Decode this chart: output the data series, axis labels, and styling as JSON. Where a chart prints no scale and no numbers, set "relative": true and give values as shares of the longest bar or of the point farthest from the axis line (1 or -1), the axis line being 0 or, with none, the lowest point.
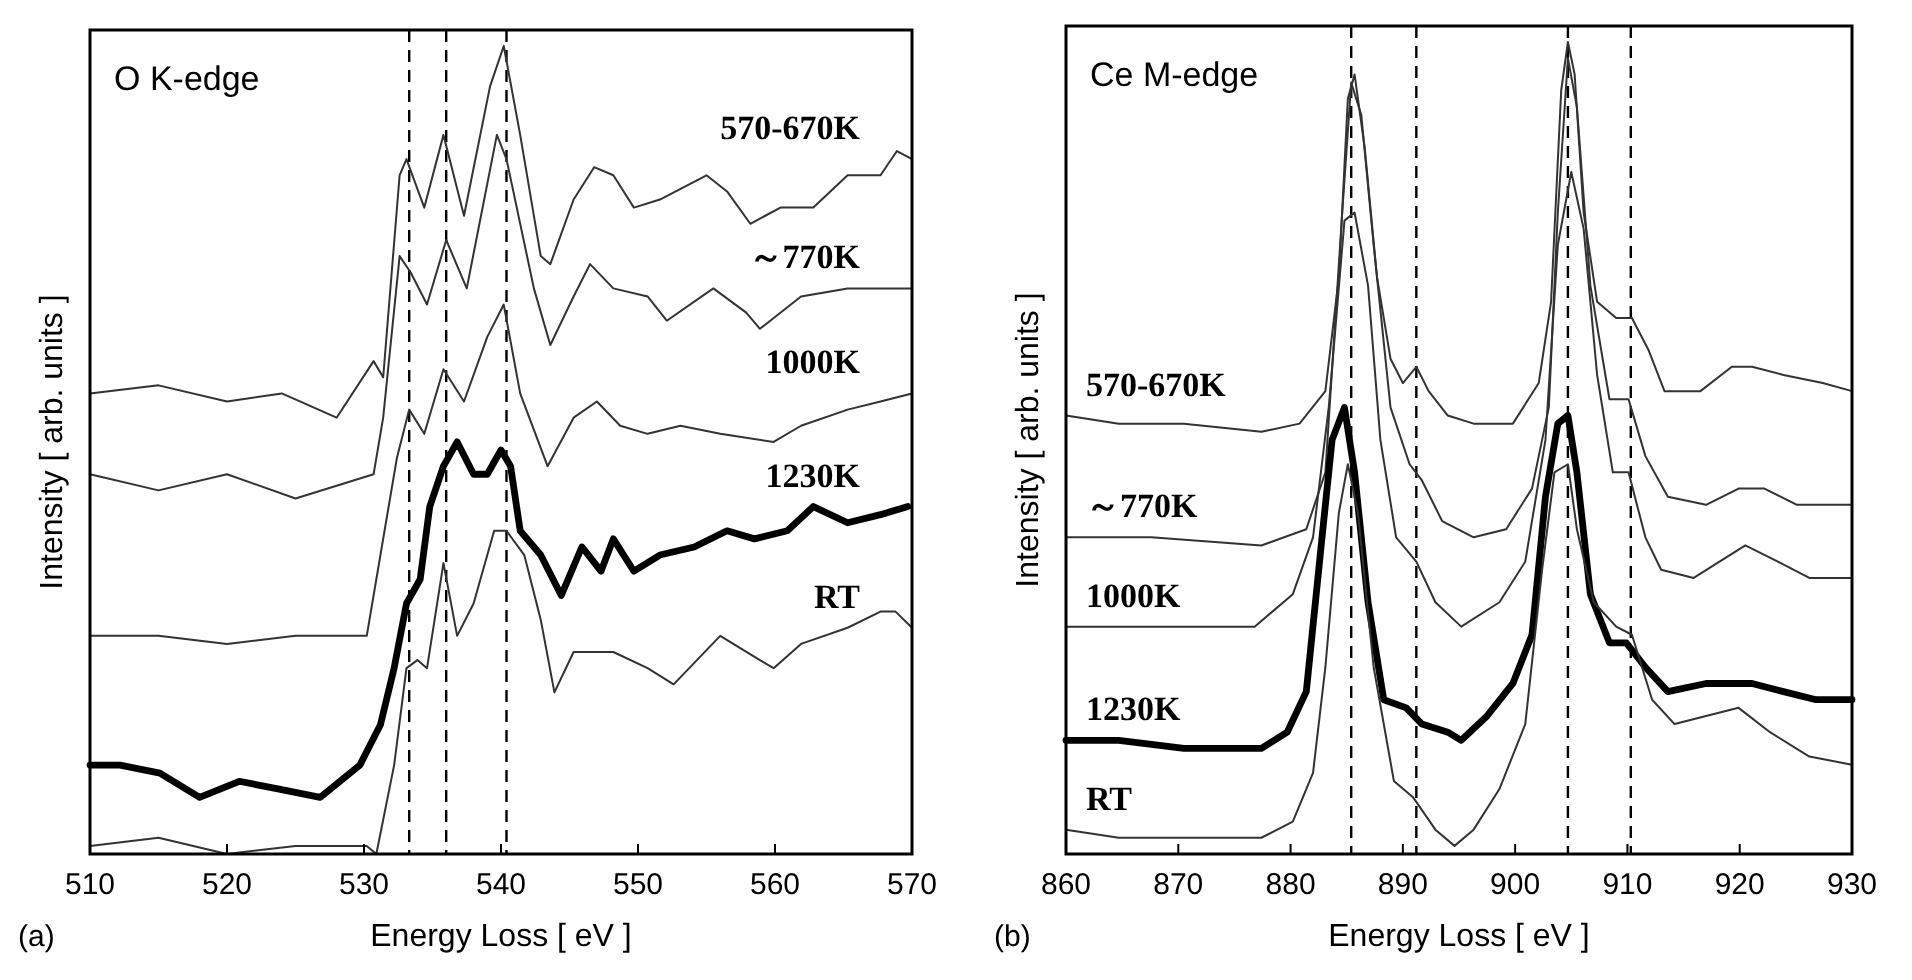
{
  "chart_data": [
    {
      "type": "line",
      "title": "O K-edge",
      "xlabel": "Energy Loss [ eV ]",
      "ylabel": "Intensity [ arb. units ]",
      "annotations": [
        "(a)"
      ],
      "relative": true,
      "grid": false,
      "xlim": [
        510,
        570
      ],
      "xticks": [
        {
          "value": 510,
          "label": "510"
        },
        520,
        530,
        540,
        550,
        560,
        570
      ],
      "ref_lines": [
        {
          "axis": "x",
          "value": 533.3,
          "color": "#000000",
          "line_style": "dashed"
        },
        {
          "axis": "x",
          "value": 536,
          "color": "#000000",
          "line_style": "dashed"
        },
        {
          "axis": "x",
          "value": 540.4,
          "color": "#000000",
          "line_style": "dashed"
        }
      ],
      "series": [
        {
          "name": "570-670K",
          "color": "#333333",
          "x": [
            510,
            515,
            520,
            524,
            528,
            530.7,
            531.4,
            532.6,
            533.1,
            534.4,
            535.8,
            537.3,
            539.2,
            540.2,
            541.4,
            542.9,
            543.6,
            545.3,
            546.8,
            548.2,
            549.7,
            551.6,
            555,
            556.5,
            558.2,
            560.4,
            562.8,
            565.3,
            567.7,
            568.9,
            570
          ],
          "values": [
            0.57,
            0.58,
            0.56,
            0.57,
            0.54,
            0.61,
            0.59,
            0.84,
            0.86,
            0.8,
            0.89,
            0.79,
            0.95,
            1,
            0.89,
            0.74,
            0.73,
            0.81,
            0.85,
            0.84,
            0.8,
            0.81,
            0.84,
            0.82,
            0.78,
            0.8,
            0.8,
            0.84,
            0.84,
            0.87,
            0.86
          ]
        },
        {
          "name": "～770K",
          "color": "#333333",
          "x": [
            510,
            515,
            520,
            525,
            530.7,
            531.4,
            532.6,
            533.4,
            534.6,
            536,
            537.5,
            539.7,
            540.4,
            542.4,
            543.6,
            545.3,
            546.5,
            548.2,
            550.7,
            552.1,
            555.5,
            557.9,
            558.9,
            561.9,
            565.3,
            567.7,
            570
          ],
          "values": [
            0.47,
            0.45,
            0.47,
            0.44,
            0.47,
            0.54,
            0.74,
            0.72,
            0.68,
            0.76,
            0.7,
            0.89,
            0.86,
            0.7,
            0.63,
            0.69,
            0.73,
            0.7,
            0.69,
            0.66,
            0.7,
            0.67,
            0.65,
            0.69,
            0.7,
            0.7,
            0.7
          ]
        },
        {
          "name": "1000K",
          "color": "#333333",
          "x": [
            510,
            515,
            520,
            525,
            530.2,
            531.2,
            532.4,
            533.3,
            534.4,
            535.8,
            537.3,
            539,
            540.2,
            541.4,
            543.4,
            545.3,
            547,
            548.7,
            550.7,
            553.1,
            556,
            559.9,
            561.9,
            565.3,
            567.7,
            570
          ],
          "values": [
            0.27,
            0.27,
            0.26,
            0.27,
            0.27,
            0.37,
            0.49,
            0.55,
            0.52,
            0.6,
            0.56,
            0.64,
            0.68,
            0.57,
            0.48,
            0.54,
            0.56,
            0.53,
            0.52,
            0.53,
            0.52,
            0.51,
            0.53,
            0.55,
            0.56,
            0.57
          ]
        },
        {
          "name": "1230K",
          "color": "#000000",
          "x": [
            510,
            512.2,
            515.1,
            518,
            520.9,
            523.9,
            526.8,
            529.7,
            531.2,
            532.2,
            533.1,
            534.1,
            534.8,
            535.8,
            536.8,
            538,
            539,
            540,
            540.7,
            541.4,
            542.9,
            544.4,
            545.9,
            547.3,
            548.2,
            549.7,
            551.6,
            554.1,
            556.5,
            558.5,
            560.9,
            562.8,
            565.3,
            567.7,
            569.7
          ],
          "values": [
            0.11,
            0.11,
            0.1,
            0.07,
            0.09,
            0.08,
            0.07,
            0.11,
            0.16,
            0.23,
            0.31,
            0.34,
            0.43,
            0.48,
            0.51,
            0.47,
            0.47,
            0.5,
            0.48,
            0.4,
            0.37,
            0.32,
            0.38,
            0.35,
            0.39,
            0.35,
            0.37,
            0.38,
            0.4,
            0.39,
            0.4,
            0.43,
            0.41,
            0.42,
            0.43
          ]
        },
        {
          "name": "RT",
          "color": "#333333",
          "x": [
            510,
            515,
            520,
            525,
            530.2,
            530.9,
            532.2,
            533.1,
            533.9,
            534.6,
            535.8,
            536.8,
            538,
            539.5,
            540.4,
            541.7,
            542.9,
            543.9,
            545.3,
            548.2,
            550.7,
            552.6,
            556,
            558.9,
            559.9,
            561.9,
            565.3,
            567.7,
            568.8,
            570
          ],
          "values": [
            0.01,
            0.02,
            0,
            0.01,
            0.01,
            0,
            0.11,
            0.23,
            0.24,
            0.23,
            0.36,
            0.27,
            0.31,
            0.4,
            0.4,
            0.37,
            0.29,
            0.2,
            0.25,
            0.25,
            0.23,
            0.21,
            0.27,
            0.24,
            0.23,
            0.26,
            0.28,
            0.3,
            0.3,
            0.28
          ]
        }
      ]
    },
    {
      "type": "line",
      "title": "Ce M-edge",
      "xlabel": "Energy Loss [ eV ]",
      "ylabel": "Intensity [ arb. units ]",
      "annotations": [
        "(b)"
      ],
      "relative": true,
      "grid": false,
      "xlim": [
        860,
        930
      ],
      "xticks": [
        860,
        870,
        880,
        890,
        900,
        910,
        920,
        930
      ],
      "ref_lines": [
        {
          "axis": "x",
          "value": 885.4,
          "color": "#000000",
          "line_style": "dashed"
        },
        {
          "axis": "x",
          "value": 891.2,
          "color": "#000000",
          "line_style": "dashed"
        },
        {
          "axis": "x",
          "value": 904.7,
          "color": "#000000",
          "line_style": "dashed"
        },
        {
          "axis": "x",
          "value": 910.3,
          "color": "#000000",
          "line_style": "dashed"
        }
      ],
      "series": [
        {
          "name": "570-670K",
          "color": "#333333",
          "x": [
            860,
            864.7,
            870.5,
            877.4,
            880.8,
            883.1,
            884.3,
            885.1,
            885.7,
            886.6,
            887.7,
            888.9,
            890,
            891.2,
            892.3,
            894,
            896.3,
            899.8,
            902.1,
            903.2,
            904.1,
            904.7,
            905.3,
            906.1,
            907.3,
            909,
            910.4,
            911.9,
            913.3,
            916.5,
            919.3,
            921.1,
            923.9,
            927.4,
            930
          ],
          "values": [
            0.54,
            0.53,
            0.53,
            0.52,
            0.53,
            0.57,
            0.71,
            0.93,
            0.96,
            0.87,
            0.71,
            0.61,
            0.58,
            0.6,
            0.57,
            0.54,
            0.53,
            0.53,
            0.58,
            0.68,
            0.94,
            1,
            0.96,
            0.79,
            0.68,
            0.66,
            0.66,
            0.62,
            0.57,
            0.57,
            0.6,
            0.6,
            0.59,
            0.58,
            0.57
          ]
        },
        {
          "name": "～770K",
          "color": "#333333",
          "x": [
            860,
            867.6,
            877.4,
            881.4,
            883.1,
            884.6,
            885.4,
            886.3,
            887.4,
            888.9,
            890.6,
            891.7,
            893.5,
            896.3,
            899.2,
            901.5,
            903,
            903.8,
            904.7,
            905.5,
            906.7,
            908.4,
            910.1,
            911.6,
            913.6,
            917,
            919.9,
            922.2,
            925.1,
            930
          ],
          "values": [
            0.39,
            0.39,
            0.38,
            0.4,
            0.47,
            0.79,
            0.95,
            0.91,
            0.75,
            0.55,
            0.48,
            0.46,
            0.41,
            0.39,
            0.4,
            0.45,
            0.55,
            0.79,
            0.98,
            0.92,
            0.7,
            0.56,
            0.56,
            0.49,
            0.44,
            0.43,
            0.45,
            0.45,
            0.43,
            0.43
          ]
        },
        {
          "name": "1000K",
          "color": "#333333",
          "x": [
            860,
            867.6,
            876.8,
            880.2,
            882,
            883.4,
            884.8,
            885.7,
            886.9,
            888,
            889.4,
            891.2,
            892.9,
            895.2,
            898.6,
            900.9,
            902.7,
            903.8,
            905,
            906.1,
            907.3,
            908.7,
            910.1,
            911.6,
            913,
            915.9,
            918.2,
            920.5,
            923.4,
            926.2,
            930
          ],
          "values": [
            0.28,
            0.28,
            0.28,
            0.32,
            0.39,
            0.55,
            0.78,
            0.79,
            0.7,
            0.51,
            0.39,
            0.36,
            0.31,
            0.28,
            0.31,
            0.36,
            0.51,
            0.75,
            0.84,
            0.77,
            0.59,
            0.47,
            0.47,
            0.39,
            0.35,
            0.34,
            0.36,
            0.38,
            0.36,
            0.34,
            0.34
          ]
        },
        {
          "name": "1230K",
          "color": "#000000",
          "x": [
            860,
            864.7,
            870.5,
            877.4,
            879.7,
            881.4,
            882.8,
            883.7,
            884.8,
            885.7,
            886.9,
            888.3,
            890.3,
            891.7,
            894,
            895.2,
            897.5,
            899.8,
            901.5,
            902.7,
            903.8,
            904.7,
            905.5,
            906.7,
            908.4,
            909.9,
            911.6,
            913.6,
            917,
            921.1,
            923.9,
            926.8,
            930
          ],
          "values": [
            0.14,
            0.14,
            0.13,
            0.13,
            0.15,
            0.2,
            0.39,
            0.51,
            0.55,
            0.47,
            0.31,
            0.19,
            0.18,
            0.16,
            0.15,
            0.14,
            0.17,
            0.21,
            0.27,
            0.44,
            0.53,
            0.54,
            0.47,
            0.32,
            0.26,
            0.26,
            0.23,
            0.2,
            0.21,
            0.21,
            0.2,
            0.19,
            0.19
          ]
        },
        {
          "name": "RT",
          "color": "#333333",
          "x": [
            860,
            864.7,
            870.5,
            877.4,
            880.2,
            882,
            883.1,
            884.3,
            885.1,
            886,
            887.4,
            889.2,
            890.9,
            892.9,
            894.6,
            896.3,
            898.6,
            900.9,
            902.4,
            903.5,
            904.7,
            905.5,
            907,
            909,
            910.4,
            912.2,
            914.2,
            917,
            919.9,
            922.7,
            926.2,
            930
          ],
          "values": [
            0.03,
            0.02,
            0.02,
            0.02,
            0.04,
            0.1,
            0.23,
            0.42,
            0.48,
            0.42,
            0.23,
            0.09,
            0.07,
            0.03,
            0.01,
            0.03,
            0.08,
            0.16,
            0.35,
            0.47,
            0.48,
            0.4,
            0.31,
            0.28,
            0.27,
            0.19,
            0.16,
            0.17,
            0.18,
            0.15,
            0.12,
            0.11
          ]
        }
      ]
    }
  ]
}
